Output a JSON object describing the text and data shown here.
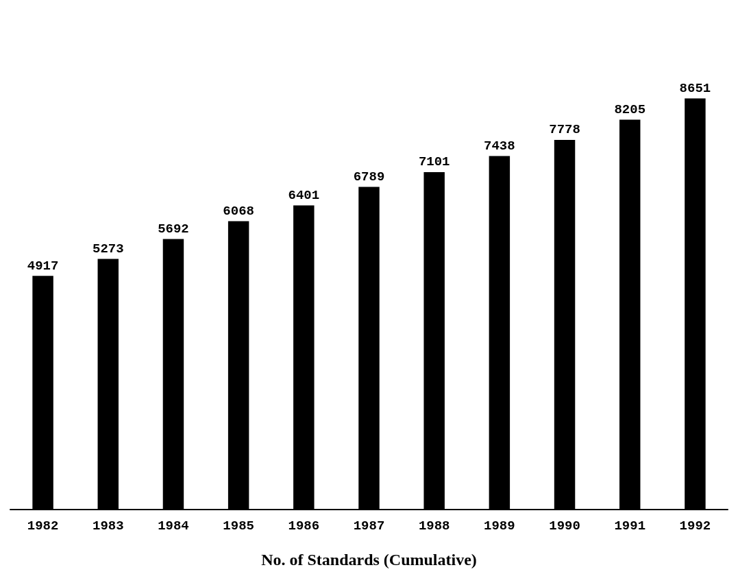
{
  "chart_data": {
    "type": "bar",
    "title": "No. of Standards (Cumulative)",
    "categories": [
      "1982",
      "1983",
      "1984",
      "1985",
      "1986",
      "1987",
      "1988",
      "1989",
      "1990",
      "1991",
      "1992"
    ],
    "values": [
      4917,
      5273,
      5692,
      6068,
      6401,
      6789,
      7101,
      7438,
      7778,
      8205,
      8651
    ],
    "color": "#000000",
    "data_labels": true
  }
}
